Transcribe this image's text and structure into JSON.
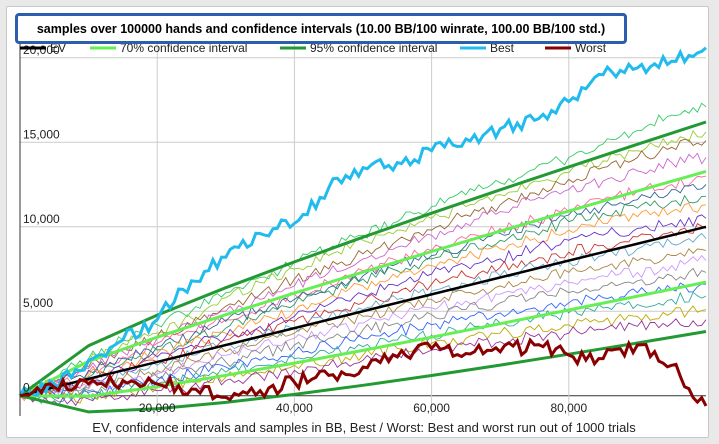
{
  "chart_data": {
    "type": "line",
    "title": "samples over 100000 hands and confidence intervals (10.00 BB/100 winrate, 100.00 BB/100 std.)",
    "xlabel": "EV, confidence intervals and samples in BB, Best / Worst: Best and worst run out of 1000 trials",
    "ylabel": "",
    "xlim": [
      0,
      100000
    ],
    "ylim": [
      -1200,
      22000
    ],
    "x_ticks": [
      20000,
      40000,
      60000,
      80000
    ],
    "x_tick_labels": [
      "20,000",
      "40,000",
      "60,000",
      "80,000"
    ],
    "y_ticks": [
      0,
      5000,
      10000,
      15000,
      20000
    ],
    "y_tick_labels": [
      "0",
      "5,000",
      "10,000",
      "15,000",
      "20,000"
    ],
    "grid": true,
    "legend_position": "top",
    "winrate_bb_per_100": 10,
    "std_bb_per_100": 100,
    "hands": 100000,
    "trials": 1000,
    "series": [
      {
        "name": "EV",
        "color": "#000000",
        "kind": "ev",
        "x": [
          0,
          100000
        ],
        "y": [
          0,
          10000
        ]
      },
      {
        "name": "70% confidence interval",
        "color": "#66ee55",
        "kind": "ci",
        "z": 1.036,
        "x": [
          0,
          10000,
          20000,
          30000,
          40000,
          50000,
          60000,
          70000,
          80000,
          90000,
          100000
        ],
        "upper": [
          0,
          2036,
          3465,
          4794,
          6072,
          7317,
          8538,
          9740,
          10927,
          12108,
          13276
        ],
        "lower": [
          0,
          -36,
          535,
          1206,
          1928,
          2683,
          3462,
          4260,
          5073,
          5892,
          6724
        ]
      },
      {
        "name": "95% confidence interval",
        "color": "#229933",
        "kind": "ci",
        "z": 1.96,
        "x": [
          0,
          10000,
          20000,
          30000,
          40000,
          50000,
          60000,
          70000,
          80000,
          90000,
          100000
        ],
        "upper": [
          0,
          2960,
          4772,
          6395,
          7920,
          9383,
          10801,
          12186,
          13543,
          14880,
          16198
        ],
        "lower": [
          0,
          -960,
          -772,
          -395,
          80,
          617,
          1199,
          1814,
          2457,
          3120,
          3802
        ]
      },
      {
        "name": "Best",
        "color": "#22bbee",
        "kind": "run",
        "x": [
          0,
          5000,
          10000,
          15000,
          20000,
          25000,
          30000,
          35000,
          40000,
          45000,
          50000,
          55000,
          60000,
          65000,
          70000,
          75000,
          80000,
          85000,
          90000,
          95000,
          100000
        ],
        "y": [
          0,
          700,
          2100,
          3300,
          4500,
          6800,
          8200,
          9600,
          10200,
          12300,
          13500,
          13800,
          14500,
          15200,
          15800,
          16300,
          17400,
          19000,
          19400,
          19800,
          20600
        ]
      },
      {
        "name": "Worst",
        "color": "#880000",
        "kind": "run",
        "x": [
          0,
          5000,
          10000,
          15000,
          20000,
          25000,
          30000,
          35000,
          40000,
          45000,
          50000,
          55000,
          60000,
          65000,
          70000,
          75000,
          80000,
          85000,
          90000,
          95000,
          100000
        ],
        "y": [
          0,
          500,
          700,
          900,
          700,
          400,
          -100,
          300,
          800,
          1200,
          1700,
          2300,
          2800,
          2500,
          2600,
          3000,
          2400,
          2200,
          3000,
          1800,
          -600
        ]
      }
    ],
    "samples": {
      "x": [
        0,
        5000,
        10000,
        15000,
        20000,
        25000,
        30000,
        35000,
        40000,
        45000,
        50000,
        55000,
        60000,
        65000,
        70000,
        75000,
        80000,
        85000,
        90000,
        95000,
        100000
      ],
      "runs": [
        {
          "color": "#33cc66",
          "y": [
            0,
            1000,
            2200,
            3300,
            4200,
            5000,
            6100,
            7000,
            7900,
            8700,
            9500,
            10300,
            11200,
            11900,
            12600,
            13400,
            14100,
            14900,
            15700,
            16600,
            17100
          ]
        },
        {
          "color": "#99cc33",
          "y": [
            0,
            900,
            2000,
            3100,
            3700,
            4600,
            5800,
            6700,
            7500,
            8300,
            9200,
            9800,
            10500,
            11200,
            11900,
            12700,
            13200,
            13900,
            14500,
            15100,
            15600
          ]
        },
        {
          "color": "#996633",
          "y": [
            0,
            800,
            1700,
            2800,
            3500,
            4200,
            5300,
            6000,
            6900,
            7500,
            8400,
            9200,
            9800,
            10700,
            11300,
            12000,
            12800,
            13500,
            14100,
            14700,
            15100
          ]
        },
        {
          "color": "#cc66cc",
          "y": [
            0,
            900,
            1600,
            2600,
            3400,
            4100,
            5000,
            5700,
            6500,
            7300,
            8100,
            8800,
            9500,
            10200,
            10900,
            11600,
            12200,
            12700,
            13300,
            13800,
            14100
          ]
        },
        {
          "color": "#ff6699",
          "y": [
            0,
            700,
            1400,
            2300,
            3100,
            3800,
            4500,
            5200,
            6000,
            6700,
            7400,
            8000,
            8600,
            9300,
            9900,
            10400,
            10900,
            11600,
            12100,
            12500,
            13000
          ]
        },
        {
          "color": "#336699",
          "y": [
            0,
            600,
            1500,
            2200,
            2900,
            3500,
            4400,
            5100,
            5700,
            6400,
            7100,
            7800,
            8300,
            8900,
            9600,
            10100,
            10700,
            11200,
            11600,
            12200,
            12500
          ]
        },
        {
          "color": "#339966",
          "y": [
            0,
            500,
            1100,
            1900,
            2700,
            3300,
            4000,
            4800,
            5400,
            6200,
            6900,
            7400,
            8100,
            8600,
            9200,
            9700,
            10300,
            10800,
            11100,
            11500,
            11800
          ]
        },
        {
          "color": "#ff9933",
          "y": [
            0,
            400,
            1200,
            1800,
            2500,
            3100,
            3700,
            4400,
            5000,
            5800,
            6500,
            7000,
            7700,
            8200,
            8700,
            9300,
            9800,
            10200,
            10600,
            10900,
            11300
          ]
        },
        {
          "color": "#6633cc",
          "y": [
            0,
            300,
            800,
            1600,
            2300,
            3000,
            3500,
            4100,
            4700,
            5400,
            6000,
            6500,
            7200,
            7700,
            8100,
            8700,
            9200,
            9500,
            9900,
            10200,
            10500
          ]
        },
        {
          "color": "#cc3333",
          "y": [
            0,
            400,
            900,
            1500,
            2000,
            2600,
            3300,
            3800,
            4400,
            4900,
            5500,
            6100,
            6600,
            7100,
            7600,
            8000,
            8500,
            8900,
            9400,
            9700,
            9900
          ]
        },
        {
          "color": "#66aacc",
          "y": [
            0,
            200,
            700,
            1200,
            1800,
            2400,
            3000,
            3500,
            4000,
            4600,
            5100,
            5700,
            6200,
            6600,
            7100,
            7600,
            7900,
            8300,
            8700,
            9000,
            9300
          ]
        },
        {
          "color": "#aa8844",
          "y": [
            0,
            100,
            500,
            1000,
            1500,
            2100,
            2600,
            3200,
            3700,
            4200,
            4700,
            5200,
            5700,
            6100,
            6500,
            6900,
            7300,
            7600,
            8000,
            8300,
            8600
          ]
        },
        {
          "color": "#cc99ff",
          "y": [
            0,
            200,
            400,
            800,
            1300,
            1800,
            2400,
            2900,
            3400,
            3800,
            4300,
            4700,
            5200,
            5600,
            6000,
            6300,
            6700,
            7100,
            7300,
            7700,
            8000
          ]
        },
        {
          "color": "#888888",
          "y": [
            0,
            -100,
            300,
            700,
            1100,
            1600,
            2000,
            2500,
            3000,
            3400,
            3900,
            4300,
            4800,
            5100,
            5500,
            5800,
            6100,
            6500,
            6800,
            7100,
            7300
          ]
        },
        {
          "color": "#3366ff",
          "y": [
            0,
            100,
            200,
            500,
            900,
            1300,
            1700,
            2100,
            2600,
            3000,
            3400,
            3800,
            4200,
            4500,
            4900,
            5200,
            5500,
            5800,
            6100,
            6300,
            6600
          ]
        },
        {
          "color": "#33aa99",
          "y": [
            0,
            -200,
            100,
            300,
            700,
            1000,
            1400,
            1800,
            2200,
            2500,
            2900,
            3300,
            3600,
            4000,
            4300,
            4600,
            4900,
            5200,
            5400,
            5700,
            5900
          ]
        },
        {
          "color": "#bbaa00",
          "y": [
            0,
            -100,
            -100,
            200,
            500,
            800,
            1100,
            1400,
            1800,
            2100,
            2400,
            2800,
            3100,
            3400,
            3700,
            3900,
            4200,
            4400,
            4700,
            4900,
            5100
          ]
        },
        {
          "color": "#993399",
          "y": [
            0,
            -300,
            -200,
            0,
            300,
            500,
            900,
            1200,
            1500,
            1800,
            2100,
            2400,
            2700,
            3000,
            3200,
            3500,
            3700,
            3900,
            4100,
            4300,
            4500
          ]
        }
      ]
    }
  }
}
